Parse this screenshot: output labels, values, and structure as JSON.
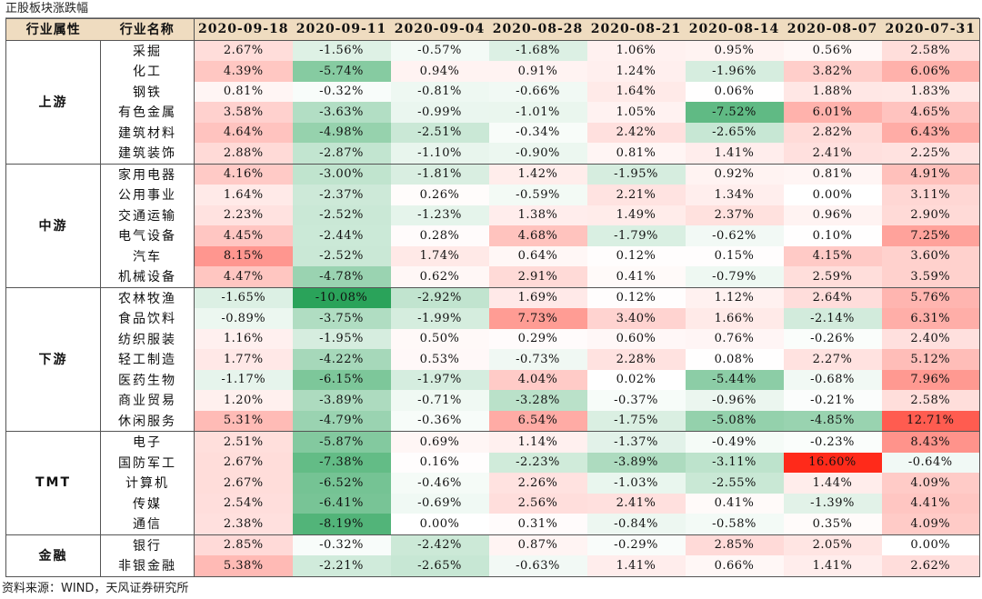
{
  "title": "正股板块涨跌幅",
  "source_note": "资料来源：WIND，天风证券研究所",
  "header": {
    "col_group": "行业属性",
    "col_industry": "行业名称",
    "dates": [
      "2020-09-18",
      "2020-09-11",
      "2020-09-04",
      "2020-08-28",
      "2020-08-21",
      "2020-08-14",
      "2020-08-07",
      "2020-07-31"
    ]
  },
  "colors": {
    "header_bg": "#efdcc0",
    "positive": "#ff2a1a",
    "negative": "#2aa35a"
  },
  "groups": [
    {
      "name": "上游",
      "rows": [
        {
          "industry": "采掘",
          "values": [
            "2.67%",
            "-1.56%",
            "-0.57%",
            "-1.68%",
            "1.06%",
            "0.95%",
            "0.56%",
            "2.58%"
          ]
        },
        {
          "industry": "化工",
          "values": [
            "4.39%",
            "-5.74%",
            "0.94%",
            "0.91%",
            "1.24%",
            "-1.96%",
            "3.82%",
            "6.06%"
          ]
        },
        {
          "industry": "钢铁",
          "values": [
            "0.81%",
            "-0.32%",
            "-0.81%",
            "-0.66%",
            "1.64%",
            "0.06%",
            "1.88%",
            "1.83%"
          ]
        },
        {
          "industry": "有色金属",
          "values": [
            "3.58%",
            "-3.63%",
            "-0.99%",
            "-1.01%",
            "1.05%",
            "-7.52%",
            "6.01%",
            "4.65%"
          ]
        },
        {
          "industry": "建筑材料",
          "values": [
            "4.64%",
            "-4.98%",
            "-2.51%",
            "-0.34%",
            "2.42%",
            "-2.65%",
            "2.82%",
            "6.43%"
          ]
        },
        {
          "industry": "建筑装饰",
          "values": [
            "2.88%",
            "-2.87%",
            "-1.10%",
            "-0.90%",
            "0.81%",
            "1.41%",
            "2.41%",
            "2.25%"
          ]
        }
      ]
    },
    {
      "name": "中游",
      "rows": [
        {
          "industry": "家用电器",
          "values": [
            "4.16%",
            "-3.00%",
            "-1.81%",
            "1.42%",
            "-1.95%",
            "0.92%",
            "0.81%",
            "4.91%"
          ]
        },
        {
          "industry": "公用事业",
          "values": [
            "1.64%",
            "-2.37%",
            "0.26%",
            "-0.59%",
            "2.21%",
            "1.34%",
            "0.00%",
            "3.11%"
          ]
        },
        {
          "industry": "交通运输",
          "values": [
            "2.23%",
            "-2.52%",
            "-1.23%",
            "1.38%",
            "1.49%",
            "2.37%",
            "0.96%",
            "2.90%"
          ]
        },
        {
          "industry": "电气设备",
          "values": [
            "4.45%",
            "-2.44%",
            "0.28%",
            "4.68%",
            "-1.79%",
            "-0.62%",
            "0.10%",
            "7.25%"
          ]
        },
        {
          "industry": "汽车",
          "values": [
            "8.15%",
            "-2.52%",
            "1.74%",
            "0.64%",
            "0.12%",
            "0.15%",
            "4.15%",
            "3.60%"
          ]
        },
        {
          "industry": "机械设备",
          "values": [
            "4.47%",
            "-4.78%",
            "0.62%",
            "2.91%",
            "0.41%",
            "-0.79%",
            "2.59%",
            "3.59%"
          ]
        }
      ]
    },
    {
      "name": "下游",
      "rows": [
        {
          "industry": "农林牧渔",
          "values": [
            "-1.65%",
            "-10.08%",
            "-2.92%",
            "1.69%",
            "0.12%",
            "1.12%",
            "2.64%",
            "5.76%"
          ]
        },
        {
          "industry": "食品饮料",
          "values": [
            "-0.89%",
            "-3.75%",
            "-1.99%",
            "7.73%",
            "3.40%",
            "1.66%",
            "-2.14%",
            "6.31%"
          ]
        },
        {
          "industry": "纺织服装",
          "values": [
            "1.16%",
            "-1.95%",
            "0.50%",
            "0.29%",
            "0.60%",
            "0.76%",
            "-0.26%",
            "2.40%"
          ]
        },
        {
          "industry": "轻工制造",
          "values": [
            "1.77%",
            "-4.22%",
            "0.53%",
            "-0.73%",
            "2.28%",
            "0.08%",
            "2.27%",
            "5.12%"
          ]
        },
        {
          "industry": "医药生物",
          "values": [
            "-1.17%",
            "-6.15%",
            "-1.97%",
            "4.04%",
            "0.02%",
            "-5.44%",
            "-0.68%",
            "7.96%"
          ]
        },
        {
          "industry": "商业贸易",
          "values": [
            "1.20%",
            "-3.89%",
            "-0.71%",
            "-3.28%",
            "-0.37%",
            "-0.96%",
            "-0.21%",
            "2.58%"
          ]
        },
        {
          "industry": "休闲服务",
          "values": [
            "5.31%",
            "-4.79%",
            "-0.36%",
            "6.54%",
            "-1.75%",
            "-5.08%",
            "-4.85%",
            "12.71%"
          ]
        }
      ]
    },
    {
      "name": "TMT",
      "rows": [
        {
          "industry": "电子",
          "values": [
            "2.51%",
            "-5.87%",
            "0.69%",
            "1.14%",
            "-1.37%",
            "-0.49%",
            "-0.23%",
            "8.43%"
          ]
        },
        {
          "industry": "国防军工",
          "values": [
            "2.67%",
            "-7.38%",
            "0.16%",
            "-2.23%",
            "-3.89%",
            "-3.11%",
            "16.60%",
            "-0.64%"
          ]
        },
        {
          "industry": "计算机",
          "values": [
            "2.67%",
            "-6.52%",
            "-0.46%",
            "2.26%",
            "-1.03%",
            "-2.55%",
            "1.44%",
            "4.09%"
          ]
        },
        {
          "industry": "传媒",
          "values": [
            "2.54%",
            "-6.41%",
            "-0.69%",
            "2.56%",
            "2.41%",
            "0.41%",
            "-1.39%",
            "4.41%"
          ]
        },
        {
          "industry": "通信",
          "values": [
            "2.38%",
            "-8.19%",
            "0.00%",
            "0.31%",
            "-0.84%",
            "-0.58%",
            "0.35%",
            "4.09%"
          ]
        }
      ]
    },
    {
      "name": "金融",
      "rows": [
        {
          "industry": "银行",
          "values": [
            "2.85%",
            "-0.32%",
            "-2.42%",
            "0.87%",
            "-0.29%",
            "2.85%",
            "2.05%",
            "0.00%"
          ]
        },
        {
          "industry": "非银金融",
          "values": [
            "5.38%",
            "-2.21%",
            "-2.65%",
            "-0.63%",
            "1.41%",
            "0.66%",
            "1.41%",
            "2.62%"
          ]
        }
      ]
    }
  ]
}
